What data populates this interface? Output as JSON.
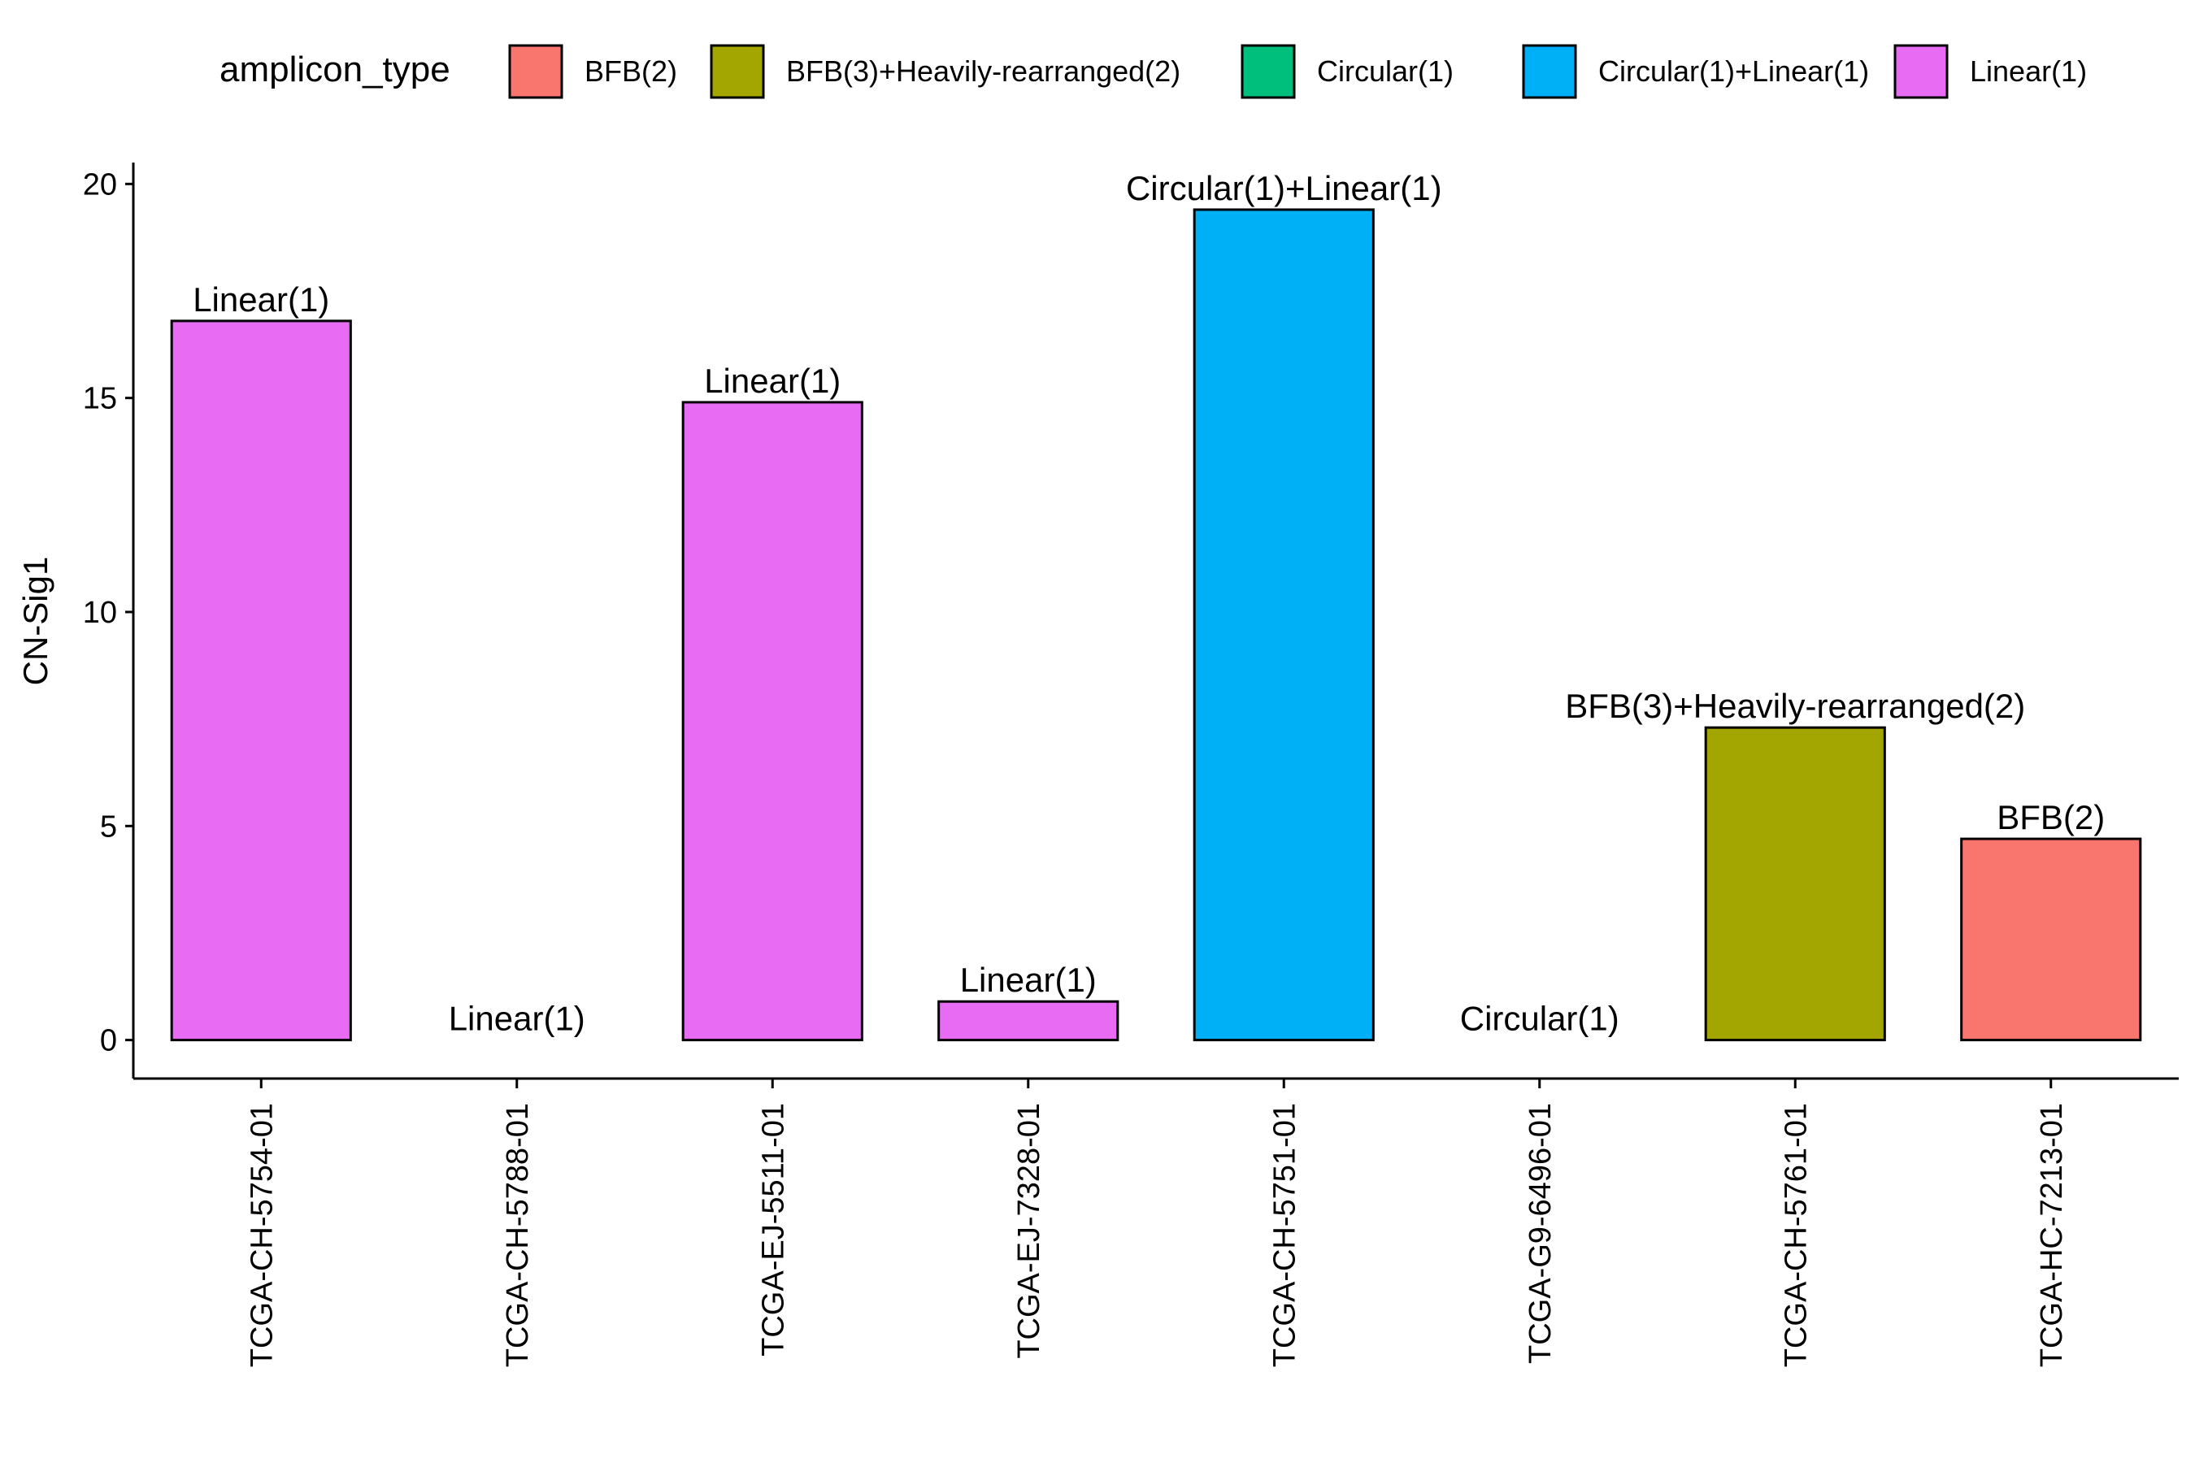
{
  "chart_data": {
    "type": "bar",
    "title": "",
    "xlabel": "",
    "ylabel": "CN-Sig1",
    "ylim": [
      -0.9,
      20.5
    ],
    "yticks": [
      0,
      5,
      10,
      15,
      20
    ],
    "grid": false,
    "legend_placement": "top",
    "legend": {
      "title": "amplicon_type",
      "entries": [
        {
          "label": "BFB(2)",
          "color": "#F8766D"
        },
        {
          "label": "BFB(3)+Heavily-rearranged(2)",
          "color": "#A3A500"
        },
        {
          "label": "Circular(1)",
          "color": "#00BF7D"
        },
        {
          "label": "Circular(1)+Linear(1)",
          "color": "#00B0F6"
        },
        {
          "label": "Linear(1)",
          "color": "#E76BF3"
        }
      ]
    },
    "categories": [
      "TCGA-CH-5754-01",
      "TCGA-CH-5788-01",
      "TCGA-EJ-5511-01",
      "TCGA-EJ-7328-01",
      "TCGA-CH-5751-01",
      "TCGA-G9-6496-01",
      "TCGA-CH-5761-01",
      "TCGA-HC-7213-01"
    ],
    "values": [
      16.8,
      0.0,
      14.9,
      0.9,
      19.4,
      0.0,
      7.3,
      4.7
    ],
    "amplicon_types": [
      "Linear(1)",
      "Linear(1)",
      "Linear(1)",
      "Linear(1)",
      "Circular(1)+Linear(1)",
      "Circular(1)",
      "BFB(3)+Heavily-rearranged(2)",
      "BFB(2)"
    ]
  }
}
